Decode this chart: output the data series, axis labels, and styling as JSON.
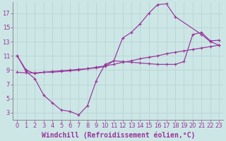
{
  "line1_x": [
    0,
    1,
    2,
    3,
    4,
    5,
    6,
    7,
    8,
    9,
    10,
    11,
    12,
    13,
    14,
    15,
    16,
    17,
    18,
    21,
    22,
    23
  ],
  "line1_y": [
    11,
    9.0,
    8.5,
    8.7,
    8.8,
    8.9,
    9.0,
    9.1,
    9.2,
    9.3,
    9.5,
    10.3,
    13.5,
    14.3,
    15.5,
    17.0,
    18.2,
    18.3,
    16.5,
    14.0,
    13.0,
    12.5
  ],
  "line2_x": [
    0,
    1,
    2,
    3,
    4,
    5,
    6,
    7,
    8,
    9,
    10,
    11,
    12,
    13,
    14,
    15,
    16,
    17,
    18,
    19,
    20,
    21,
    22,
    23
  ],
  "line2_y": [
    11,
    8.8,
    7.8,
    5.5,
    4.4,
    3.4,
    3.2,
    2.7,
    4.0,
    7.5,
    9.8,
    10.3,
    10.2,
    10.1,
    10.0,
    9.9,
    9.8,
    9.8,
    9.8,
    10.2,
    14.0,
    14.3,
    13.1,
    13.2
  ],
  "line3_x": [
    0,
    1,
    2,
    3,
    4,
    5,
    6,
    7,
    8,
    9,
    10,
    11,
    12,
    13,
    14,
    15,
    16,
    17,
    18,
    19,
    20,
    21,
    22,
    23
  ],
  "line3_y": [
    8.7,
    8.6,
    8.6,
    8.7,
    8.7,
    8.8,
    8.9,
    9.0,
    9.2,
    9.4,
    9.6,
    9.8,
    10.1,
    10.3,
    10.6,
    10.8,
    11.0,
    11.3,
    11.5,
    11.7,
    11.9,
    12.1,
    12.3,
    12.5
  ],
  "line_color": "#993399",
  "bg_color": "#cce6e6",
  "grid_color": "#aacccc",
  "xlabel": "Windchill (Refroidissement éolien,°C)",
  "yticks": [
    3,
    5,
    7,
    9,
    11,
    13,
    15,
    17
  ],
  "xticks": [
    0,
    1,
    2,
    3,
    4,
    5,
    6,
    7,
    8,
    9,
    10,
    11,
    12,
    13,
    14,
    15,
    16,
    17,
    18,
    19,
    20,
    21,
    22,
    23
  ],
  "xlim": [
    -0.5,
    23.5
  ],
  "ylim": [
    2.0,
    18.5
  ],
  "xlabel_fontsize": 7,
  "tick_fontsize": 6.0
}
